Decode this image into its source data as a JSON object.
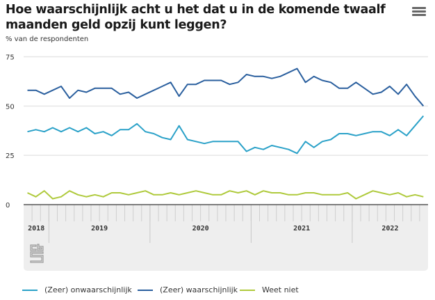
{
  "header": {
    "title": "Hoe waarschijnlijk acht u het dat u in de komende twaalf maanden geld opzij kunt leggen?",
    "subtitle": "% van de respondenten",
    "menu_icon": "hamburger-menu-icon"
  },
  "branding": {
    "logo": "cbs-logo-icon"
  },
  "chart_data": {
    "type": "line",
    "title": "Hoe waarschijnlijk acht u het dat u in de komende twaalf maanden geld opzij kunt leggen?",
    "subtitle": "% van de respondenten",
    "xlabel": "",
    "ylabel": "% van de respondenten",
    "ylim": [
      0,
      75
    ],
    "yticks": [
      0,
      25,
      50,
      75
    ],
    "grid": true,
    "x_period": "monthly, Oct 2018 – Sep 2022",
    "x_groups": [
      {
        "label": "2018",
        "months": 3
      },
      {
        "label": "2019",
        "months": 12
      },
      {
        "label": "2020",
        "months": 12
      },
      {
        "label": "2021",
        "months": 12
      },
      {
        "label": "2022",
        "months": 9
      }
    ],
    "legend_position": "bottom",
    "series": [
      {
        "name": "(Zeer) onwaarschijnlijk",
        "color": "#2aa1c8",
        "values": [
          37,
          38,
          37,
          39,
          37,
          39,
          37,
          39,
          36,
          37,
          35,
          38,
          38,
          41,
          37,
          36,
          34,
          33,
          40,
          33,
          32,
          31,
          32,
          32,
          32,
          32,
          27,
          29,
          28,
          30,
          29,
          28,
          26,
          32,
          29,
          32,
          33,
          36,
          36,
          35,
          36,
          37,
          37,
          35,
          38,
          35,
          40,
          45
        ]
      },
      {
        "name": "(Zeer) waarschijnlijk",
        "color": "#2a5f9e",
        "values": [
          58,
          58,
          56,
          58,
          60,
          54,
          58,
          57,
          59,
          59,
          59,
          56,
          57,
          54,
          56,
          58,
          60,
          62,
          55,
          61,
          61,
          63,
          63,
          63,
          61,
          62,
          66,
          65,
          65,
          64,
          65,
          67,
          69,
          62,
          65,
          63,
          62,
          59,
          59,
          62,
          59,
          56,
          57,
          60,
          56,
          61,
          55,
          50
        ]
      },
      {
        "name": "Weet niet",
        "color": "#afca3c",
        "values": [
          6,
          4,
          7,
          3,
          4,
          7,
          5,
          4,
          5,
          4,
          6,
          6,
          5,
          6,
          7,
          5,
          5,
          6,
          5,
          6,
          7,
          6,
          5,
          5,
          7,
          6,
          7,
          5,
          7,
          6,
          6,
          5,
          5,
          6,
          6,
          5,
          5,
          5,
          6,
          3,
          5,
          7,
          6,
          5,
          6,
          4,
          5,
          4
        ]
      }
    ]
  }
}
